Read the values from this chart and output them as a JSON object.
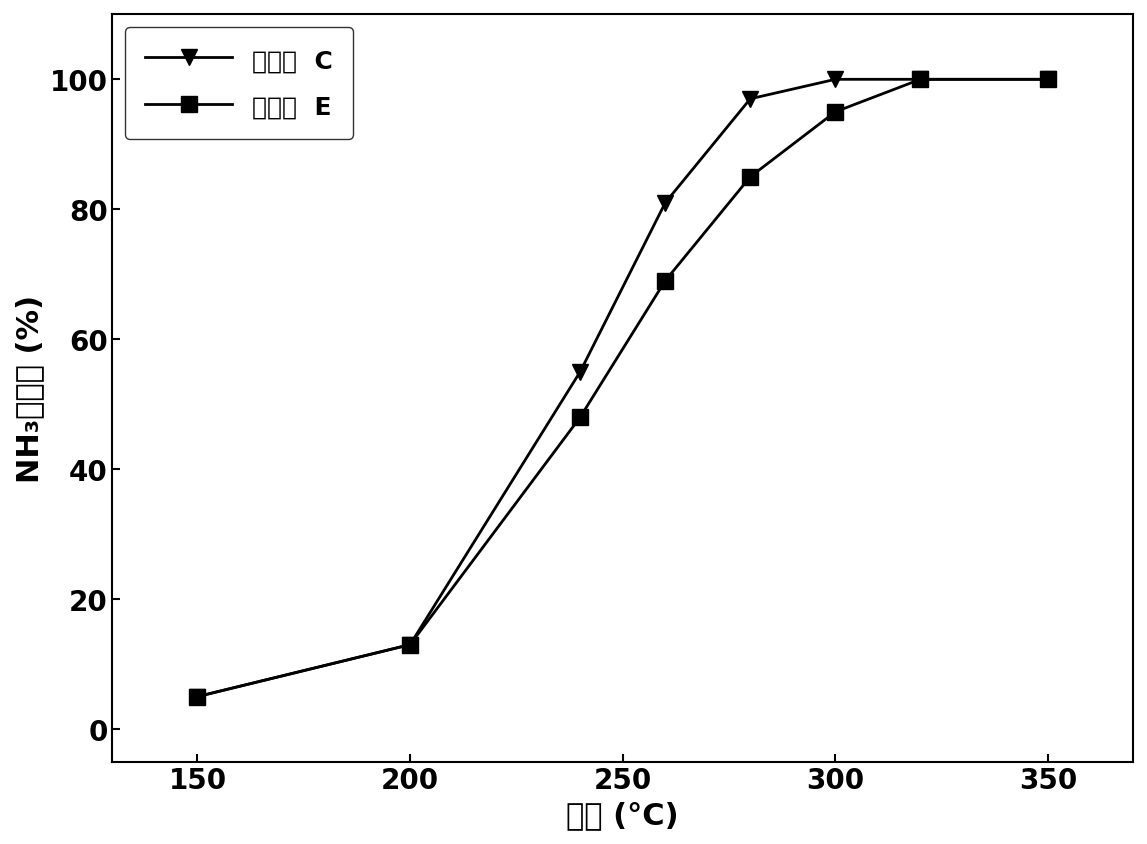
{
  "series_C": {
    "label": "催化剂  C",
    "x": [
      150,
      200,
      240,
      260,
      280,
      300,
      320,
      350
    ],
    "y": [
      5,
      13,
      55,
      81,
      97,
      100,
      100,
      100
    ],
    "marker": "v",
    "color": "#000000",
    "markersize": 12
  },
  "series_E": {
    "label": "催化剂  E",
    "x": [
      150,
      200,
      240,
      260,
      280,
      300,
      320,
      350
    ],
    "y": [
      5,
      13,
      48,
      69,
      85,
      95,
      100,
      100
    ],
    "marker": "s",
    "color": "#000000",
    "markersize": 12
  },
  "xlabel": "温度 (°C)",
  "ylabel": "NH₃转化率 (%)",
  "xlim": [
    130,
    370
  ],
  "ylim": [
    -5,
    110
  ],
  "xticks": [
    150,
    200,
    250,
    300,
    350
  ],
  "yticks": [
    0,
    20,
    40,
    60,
    80,
    100
  ],
  "linewidth": 2.0,
  "title_fontsize": 20,
  "label_fontsize": 22,
  "tick_fontsize": 20,
  "legend_fontsize": 18,
  "background_color": "#ffffff"
}
